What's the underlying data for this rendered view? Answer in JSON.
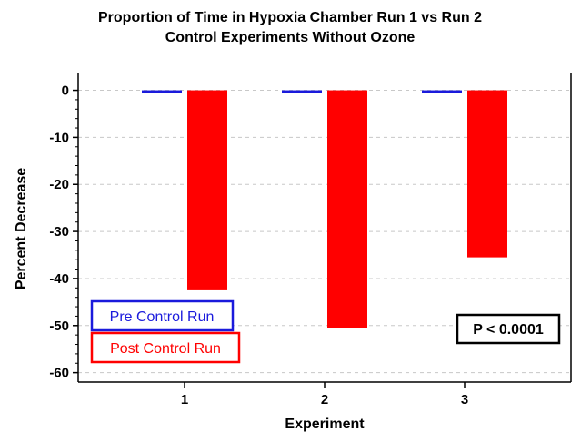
{
  "chart_data": {
    "type": "bar",
    "title": [
      "Proportion of Time in Hypoxia Chamber Run 1 vs Run 2",
      "Control Experiments Without Ozone"
    ],
    "xlabel": "Experiment",
    "ylabel": "Percent Decrease",
    "categories": [
      "1",
      "2",
      "3"
    ],
    "ylim": [
      -62,
      3
    ],
    "yticks": [
      0,
      -10,
      -20,
      -30,
      -40,
      -50,
      -60
    ],
    "grid": "horizontal dashed",
    "series": [
      {
        "name": "Pre Control Run",
        "color": "#1a1adc",
        "values": [
          -0.5,
          -0.5,
          -0.5
        ]
      },
      {
        "name": "Post Control Run",
        "color": "#ff0000",
        "values": [
          -42.5,
          -50.5,
          -35.5
        ]
      }
    ],
    "legend_placement": "bottom-left",
    "annotation": "P < 0.0001"
  }
}
